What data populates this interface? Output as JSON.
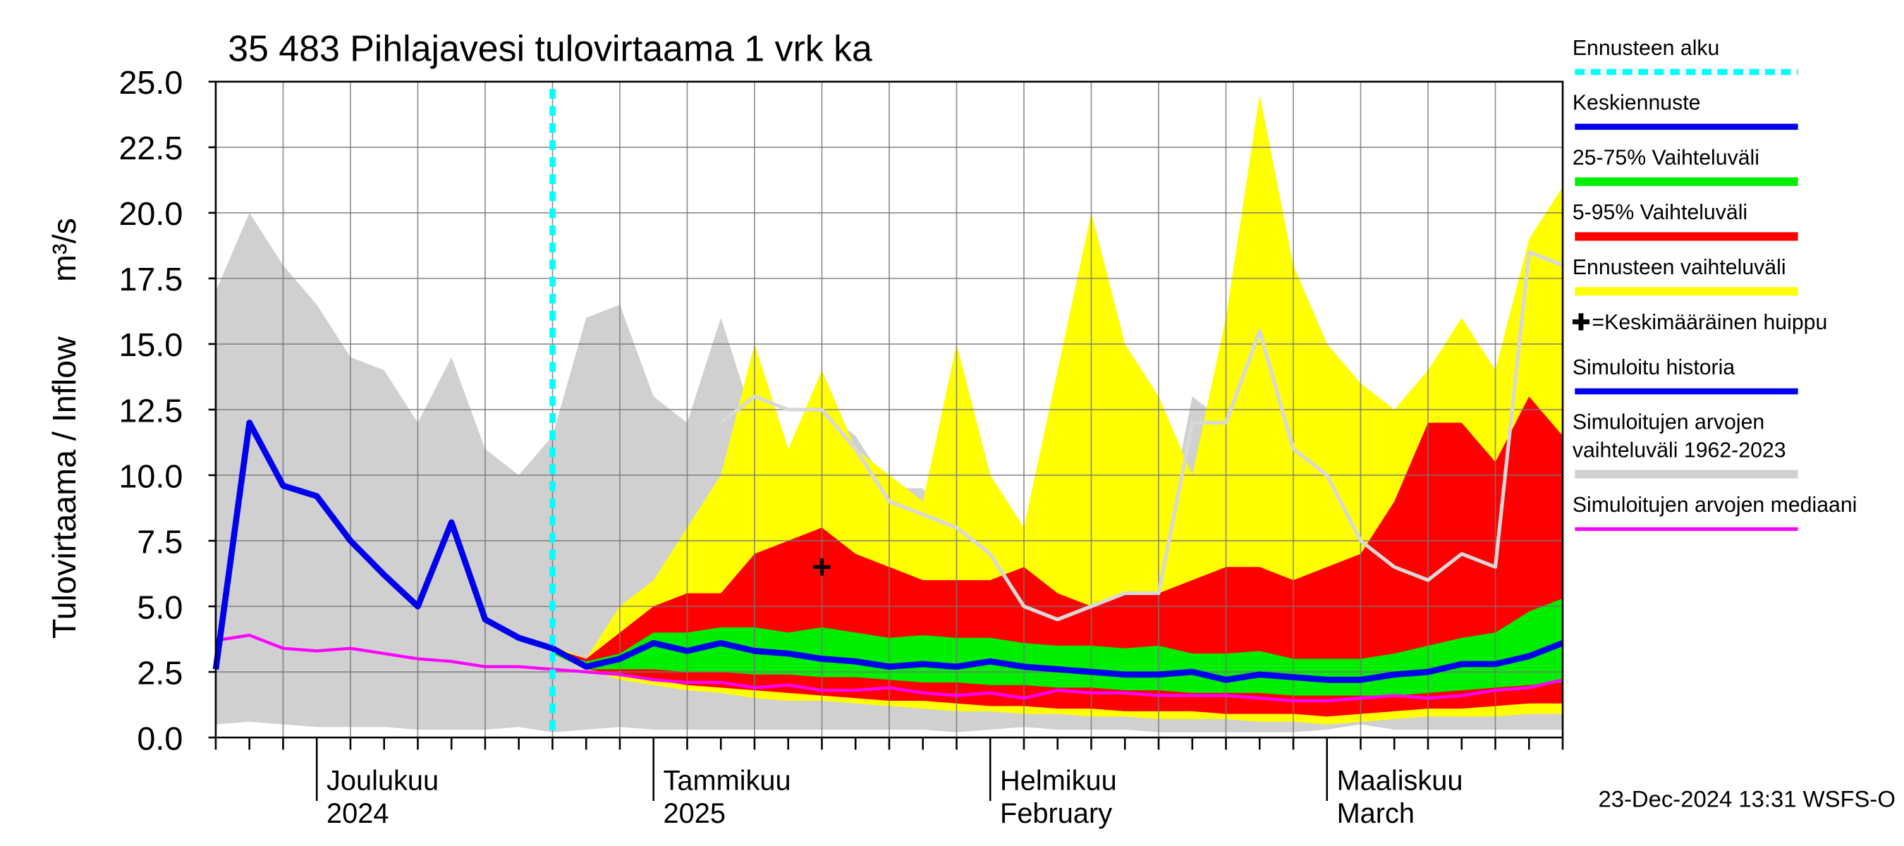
{
  "chart_data": {
    "type": "forecast",
    "title": "35 483 Pihlajavesi tulovirtaama 1 vrk ka",
    "ylabel": "Tulovirtaama / Inflow",
    "yunit": "m³/s",
    "footer": "23-Dec-2024 13:31 WSFS-O",
    "ylim": [
      0,
      25
    ],
    "yticks": [
      {
        "value": 0,
        "label": "0.0"
      },
      2.5,
      {
        "value": 5,
        "label": "5.0"
      },
      7.5,
      {
        "value": 10,
        "label": "10.0"
      },
      12.5,
      {
        "value": 15,
        "label": "15.0"
      },
      17.5,
      {
        "value": 20,
        "label": "20.0"
      },
      22.5,
      {
        "value": 25,
        "label": "25.0"
      }
    ],
    "grid": true,
    "categories": [
      null,
      null,
      null,
      [
        "Joulukuu",
        "2024"
      ],
      null,
      null,
      null,
      null,
      null,
      null,
      null,
      null,
      null,
      [
        "Tammikuu",
        "2025"
      ],
      null,
      null,
      null,
      null,
      null,
      null,
      null,
      null,
      null,
      [
        "Helmikuu",
        "February"
      ],
      null,
      null,
      null,
      null,
      null,
      null,
      null,
      null,
      null,
      [
        "Maaliskuu",
        "March"
      ],
      null,
      null,
      null,
      null,
      null,
      null,
      null
    ],
    "forecast_line": {
      "name": "Ennusteen alku",
      "color": "#00ffff"
    },
    "series": [
      {
        "name": "Keskiennuste",
        "kind": "line",
        "color": "#0000ee",
        "values": [
          null,
          null,
          null,
          null,
          null,
          null,
          null,
          null,
          null,
          null,
          3.4,
          2.7,
          3,
          3.6,
          3.3,
          3.6,
          3.3,
          3.2,
          3,
          2.9,
          2.7,
          2.8,
          2.7,
          2.9,
          2.7,
          2.6,
          2.5,
          2.4,
          2.4,
          2.5,
          2.2,
          2.4,
          2.3,
          2.2,
          2.2,
          2.4,
          2.5,
          2.8,
          2.8,
          3.1,
          3.6
        ]
      },
      {
        "name": "25-75% Vaihteluväli",
        "kind": "band",
        "color": "#00ee00",
        "low": [
          null,
          null,
          null,
          null,
          null,
          null,
          null,
          null,
          null,
          null,
          3.2,
          2.6,
          2.6,
          2.6,
          2.5,
          2.5,
          2.4,
          2.4,
          2.3,
          2.3,
          2.2,
          2.1,
          2.1,
          2,
          2,
          1.9,
          1.9,
          1.8,
          1.8,
          1.7,
          1.7,
          1.7,
          1.6,
          1.6,
          1.6,
          1.6,
          1.7,
          1.8,
          1.9,
          2,
          2.1
        ],
        "high": [
          null,
          null,
          null,
          null,
          null,
          null,
          null,
          null,
          null,
          null,
          3.3,
          2.9,
          3.2,
          4,
          4,
          4.2,
          4.2,
          4,
          4.2,
          4,
          3.8,
          3.9,
          3.8,
          3.8,
          3.6,
          3.5,
          3.5,
          3.4,
          3.5,
          3.2,
          3.2,
          3.3,
          3,
          3,
          3,
          3.2,
          3.5,
          3.8,
          4,
          4.8,
          5.3
        ]
      },
      {
        "name": "5-95% Vaihteluväli",
        "kind": "band",
        "color": "#ff0000",
        "low": [
          null,
          null,
          null,
          null,
          null,
          null,
          null,
          null,
          null,
          null,
          3.3,
          2.6,
          2.4,
          2.2,
          2,
          1.9,
          1.8,
          1.7,
          1.6,
          1.5,
          1.4,
          1.4,
          1.3,
          1.2,
          1.2,
          1.1,
          1.1,
          1,
          1,
          1,
          0.9,
          0.9,
          0.9,
          0.8,
          0.9,
          1,
          1.1,
          1.1,
          1.2,
          1.3,
          1.3
        ],
        "high": [
          null,
          null,
          null,
          null,
          null,
          null,
          null,
          null,
          null,
          null,
          3.4,
          3,
          4,
          5,
          5.5,
          5.5,
          7,
          7.5,
          8,
          7,
          6.5,
          6,
          6,
          6,
          6.5,
          5.5,
          5,
          5.5,
          5.5,
          6,
          6.5,
          6.5,
          6,
          6.5,
          7,
          9,
          12,
          12,
          10.5,
          13,
          11.5
        ]
      },
      {
        "name": "Ennusteen vaihteluväli",
        "kind": "band",
        "color": "#ffff00",
        "low": [
          null,
          null,
          null,
          null,
          null,
          null,
          null,
          null,
          null,
          null,
          3.4,
          2.6,
          2.2,
          2,
          1.8,
          1.7,
          1.5,
          1.4,
          1.4,
          1.3,
          1.2,
          1.1,
          1,
          1,
          0.9,
          0.9,
          0.8,
          0.8,
          0.7,
          0.7,
          0.7,
          0.6,
          0.6,
          0.5,
          0.6,
          0.7,
          0.8,
          0.8,
          0.8,
          0.9,
          0.9
        ],
        "high": [
          null,
          null,
          null,
          null,
          null,
          null,
          null,
          null,
          null,
          null,
          3.5,
          3,
          5,
          6,
          8,
          10,
          15,
          11,
          14,
          11,
          10,
          9,
          15,
          10,
          8,
          14,
          20,
          15,
          13,
          10,
          16,
          24.5,
          18,
          15,
          13.5,
          12.5,
          14,
          16,
          14,
          19,
          21
        ]
      },
      {
        "name": "=Keskimääräinen huippu",
        "kind": "marker",
        "color": "#000000",
        "values": [
          null,
          null,
          null,
          null,
          null,
          null,
          null,
          null,
          null,
          null,
          null,
          null,
          null,
          null,
          null,
          null,
          null,
          null,
          6.5,
          null,
          null,
          null,
          null,
          null,
          null,
          null,
          null,
          null,
          null,
          null,
          null,
          null,
          null,
          null,
          null,
          null,
          null,
          null,
          null,
          null,
          null
        ]
      },
      {
        "name": "Simuloitu historia",
        "kind": "line",
        "color": "#0000ee",
        "values": [
          2.6,
          12,
          9.6,
          9.2,
          7.5,
          6.2,
          5,
          8.2,
          4.5,
          3.8,
          3.4,
          null,
          null,
          null,
          null,
          null,
          null,
          null,
          null,
          null,
          null,
          null,
          null,
          null,
          null,
          null,
          null,
          null,
          null,
          null,
          null,
          null,
          null,
          null,
          null,
          null,
          null,
          null,
          null,
          null,
          null
        ]
      },
      {
        "name": "Simuloitujen arvojen vaihteluväli 1962-2023",
        "kind": "band",
        "color": "#d0d0d0",
        "low": [
          0.5,
          0.6,
          0.5,
          0.4,
          0.4,
          0.4,
          0.3,
          0.3,
          0.3,
          0.4,
          0.2,
          0.3,
          0.4,
          0.3,
          0.3,
          0.3,
          0.3,
          0.3,
          0.3,
          0.3,
          0.3,
          0.3,
          0.2,
          0.3,
          0.4,
          0.3,
          0.3,
          0.3,
          0.2,
          0.2,
          0.2,
          0.2,
          0.2,
          0.3,
          0.5,
          0.3,
          0.3,
          0.3,
          0.3,
          0.3,
          0.3
        ],
        "high": [
          17,
          20,
          18,
          16.5,
          14.5,
          14,
          12,
          14.5,
          11,
          10,
          11.5,
          16,
          16.5,
          13,
          12,
          16,
          12,
          11,
          12.5,
          11.5,
          9.5,
          9.5,
          8,
          7,
          7,
          6.5,
          6,
          5.5,
          6.5,
          13,
          12,
          13.5,
          11,
          9,
          8,
          7.5,
          6,
          6,
          7,
          18.5,
          17
        ]
      },
      {
        "name": "Simuloitujen arvojen mediaani",
        "kind": "line",
        "color": "#ff00ff",
        "values": [
          3.7,
          3.9,
          3.4,
          3.3,
          3.4,
          3.2,
          3,
          2.9,
          2.7,
          2.7,
          2.6,
          2.5,
          2.4,
          2.2,
          2.1,
          2.1,
          1.9,
          2,
          1.8,
          1.8,
          1.9,
          1.7,
          1.6,
          1.7,
          1.5,
          1.8,
          1.7,
          1.7,
          1.6,
          1.6,
          1.6,
          1.5,
          1.4,
          1.4,
          1.5,
          1.6,
          1.5,
          1.6,
          1.8,
          1.9,
          2.2
        ]
      },
      {
        "kind": "line",
        "color": "#d8d8d8",
        "values": [
          null,
          null,
          null,
          null,
          null,
          null,
          null,
          null,
          null,
          null,
          null,
          null,
          null,
          null,
          null,
          12,
          13,
          12.5,
          12.5,
          11,
          9,
          8.5,
          8,
          7,
          5,
          4.5,
          5,
          5.5,
          5.5,
          12,
          12,
          15.5,
          11,
          10,
          7.5,
          6.5,
          6,
          7,
          6.5,
          18.5,
          18
        ]
      }
    ]
  }
}
